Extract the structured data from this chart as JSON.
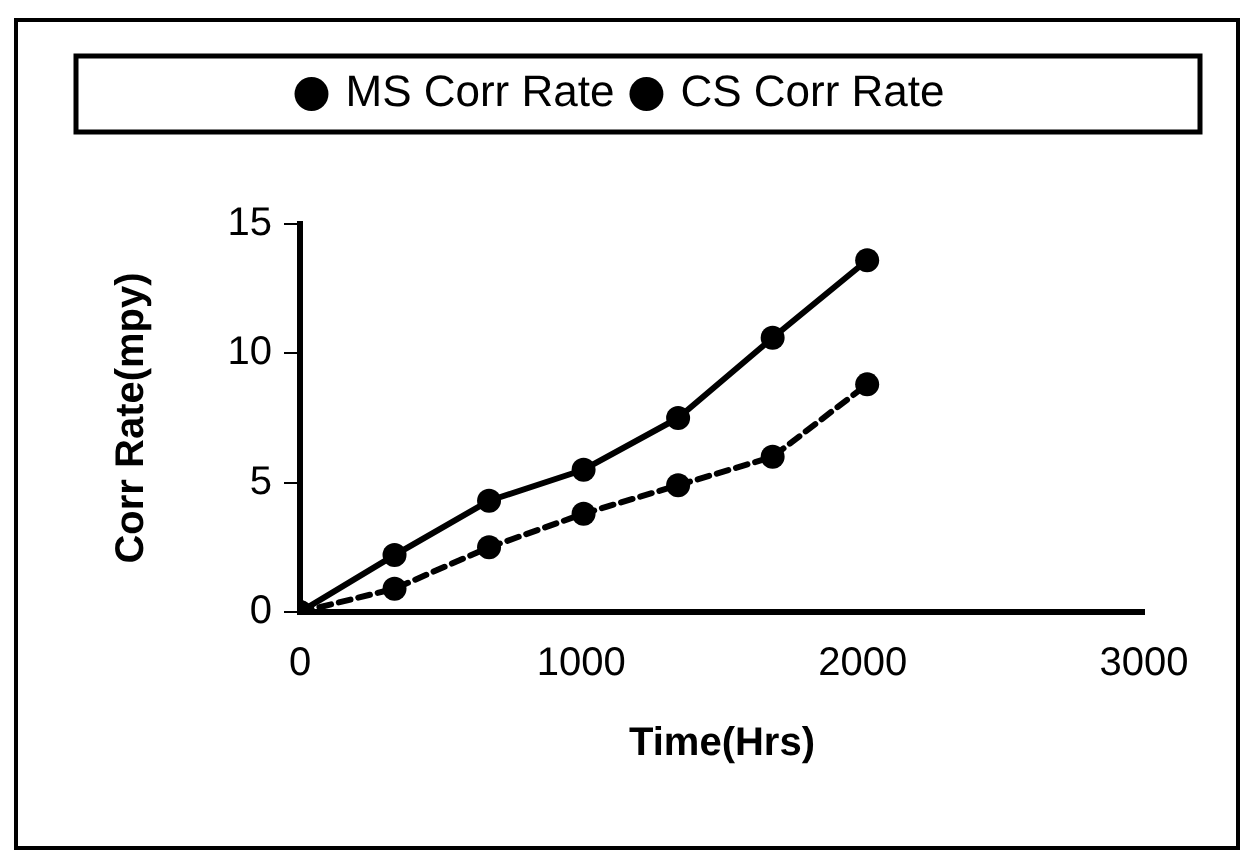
{
  "chart_data": {
    "type": "line",
    "xlabel": "Time(Hrs)",
    "ylabel": "Corr Rate(mpy)",
    "x": [
      0,
      336,
      672,
      1008,
      1344,
      1680,
      2016
    ],
    "series": [
      {
        "name": "MS Corr Rate",
        "color": "#000000",
        "values": [
          0,
          2.2,
          4.3,
          5.5,
          7.5,
          10.6,
          13.6
        ],
        "line_style": "solid"
      },
      {
        "name": "CS Corr Rate",
        "color": "#000000",
        "values": [
          0,
          0.9,
          2.5,
          3.8,
          4.9,
          6.0,
          8.8
        ],
        "line_style": "dashed"
      }
    ],
    "xlim": [
      0,
      3000
    ],
    "xticks": [
      0,
      1000,
      2000,
      3000
    ],
    "ylim": [
      0,
      15
    ],
    "yticks": [
      0,
      5,
      10,
      15
    ],
    "grid": false,
    "legend": "top",
    "marker": "circle"
  }
}
